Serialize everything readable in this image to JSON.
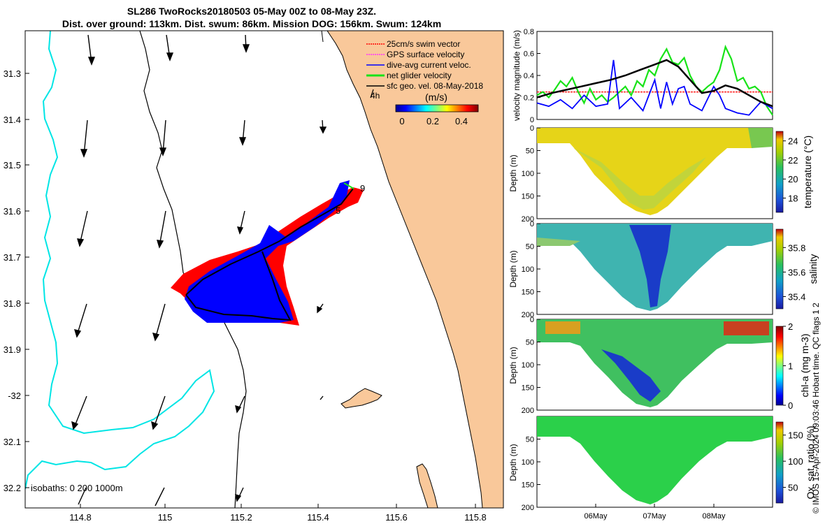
{
  "header": {
    "title_line1": "SL286 TwoRocks20180503 05-May 00Z to 08-May 23Z.",
    "title_line2": "Dist. over ground: 113km. Dist. swum: 86km. Mission DOG: 156km. Swum: 124km"
  },
  "colors": {
    "land": "#f9c89a",
    "isobath": "#00e5e5",
    "track_red": "#ff0000",
    "track_blue": "#0000ff",
    "green": "#18e318",
    "black": "#000000",
    "magenta": "#ff33ff"
  },
  "map": {
    "lon_ticks": [
      "114.8",
      "115",
      "115.2",
      "115.4",
      "115.6",
      "115.8"
    ],
    "lat_ticks": [
      "31.3",
      "31.4",
      "31.5",
      "31.6",
      "31.7",
      "31.8",
      "31.9",
      "-32",
      "32.1",
      "32.2"
    ],
    "isobath_label": "isobaths: 0   200  1000m",
    "legend": [
      {
        "label": "25cm/s swim vector",
        "color": "#ff0000"
      },
      {
        "label": "GPS surface velocity",
        "color": "#ff33ff"
      },
      {
        "label": "dive-avg current veloc.",
        "color": "#0000ff"
      },
      {
        "label": "net glider velocity",
        "color": "#18e318"
      },
      {
        "label": "sfc geo. vel. 08-May-2018",
        "color": "#000000"
      }
    ],
    "legend_time": "4h",
    "colorbar_title": "(m/s)",
    "colorbar_ticks": [
      "0",
      "0.2",
      "0.4"
    ],
    "track_labels": [
      "9",
      "5"
    ]
  },
  "chart_data": [
    {
      "type": "line",
      "title": "",
      "xlabel": "",
      "ylabel": "velocity magnitude (m/s)",
      "ylim": [
        0,
        0.8
      ],
      "yticks": [
        "0",
        "0.2",
        "0.4",
        "0.6",
        "0.8"
      ],
      "x_unit": "days since 05-May 00Z",
      "series": [
        {
          "name": "net glider velocity",
          "color": "#18e318",
          "x": [
            0,
            0.1,
            0.2,
            0.3,
            0.4,
            0.5,
            0.6,
            0.7,
            0.8,
            0.9,
            1.0,
            1.1,
            1.2,
            1.3,
            1.4,
            1.5,
            1.6,
            1.7,
            1.8,
            1.9,
            2.0,
            2.1,
            2.2,
            2.3,
            2.4,
            2.5,
            2.6,
            2.7,
            2.8,
            2.9,
            3.0,
            3.1,
            3.2,
            3.3,
            3.4,
            3.5,
            3.6,
            3.7,
            3.8,
            3.9,
            4.0
          ],
          "values": [
            0.22,
            0.25,
            0.2,
            0.27,
            0.35,
            0.3,
            0.38,
            0.25,
            0.15,
            0.28,
            0.18,
            0.22,
            0.16,
            0.2,
            0.25,
            0.3,
            0.22,
            0.35,
            0.3,
            0.45,
            0.4,
            0.55,
            0.64,
            0.52,
            0.5,
            0.56,
            0.4,
            0.3,
            0.25,
            0.3,
            0.34,
            0.45,
            0.66,
            0.55,
            0.35,
            0.38,
            0.28,
            0.3,
            0.25,
            0.12,
            0.04
          ]
        },
        {
          "name": "sfc geo. vel.",
          "color": "#000000",
          "x": [
            0,
            0.25,
            0.5,
            0.75,
            1.0,
            1.25,
            1.5,
            1.75,
            2.0,
            2.2,
            2.4,
            2.6,
            2.8,
            3.0,
            3.2,
            3.4,
            3.6,
            3.8,
            4.0
          ],
          "values": [
            0.2,
            0.24,
            0.27,
            0.3,
            0.33,
            0.36,
            0.4,
            0.45,
            0.5,
            0.54,
            0.48,
            0.36,
            0.24,
            0.26,
            0.31,
            0.28,
            0.22,
            0.16,
            0.12
          ]
        },
        {
          "name": "dive-avg current veloc.",
          "color": "#0000ff",
          "x": [
            0,
            0.2,
            0.4,
            0.6,
            0.8,
            1.0,
            1.2,
            1.3,
            1.4,
            1.6,
            1.8,
            2.0,
            2.1,
            2.2,
            2.3,
            2.4,
            2.5,
            2.6,
            2.8,
            3.0,
            3.1,
            3.2,
            3.4,
            3.6,
            3.8,
            4.0
          ],
          "values": [
            0.15,
            0.12,
            0.18,
            0.1,
            0.22,
            0.12,
            0.14,
            0.54,
            0.1,
            0.2,
            0.08,
            0.36,
            0.1,
            0.34,
            0.14,
            0.28,
            0.3,
            0.14,
            0.08,
            0.3,
            0.22,
            0.1,
            0.06,
            0.04,
            0.16,
            0.1
          ]
        },
        {
          "name": "25cm/s swim vector",
          "color": "#ff0000",
          "x": [
            0,
            4.0
          ],
          "values": [
            0.25,
            0.25
          ]
        }
      ]
    },
    {
      "type": "heatmap",
      "xlabel": "",
      "ylabel": "Depth (m)",
      "ylim": [
        200,
        0
      ],
      "yticks": [
        "0",
        "50",
        "100",
        "150",
        "200"
      ],
      "colorbar_label": "temperature (°C)",
      "colorbar_ticks": [
        "18",
        "20",
        "22",
        "24"
      ],
      "cmin": 16.5,
      "cmax": 25
    },
    {
      "type": "heatmap",
      "xlabel": "",
      "ylabel": "Depth (m)",
      "ylim": [
        200,
        0
      ],
      "yticks": [
        "0",
        "50",
        "100",
        "150",
        "200"
      ],
      "colorbar_label": "salinity",
      "colorbar_ticks": [
        "35.4",
        "35.6",
        "35.8"
      ],
      "cmin": 35.3,
      "cmax": 35.95
    },
    {
      "type": "heatmap",
      "xlabel": "",
      "ylabel": "Depth (m)",
      "ylim": [
        200,
        0
      ],
      "yticks": [
        "0",
        "50",
        "100",
        "150",
        "200"
      ],
      "colorbar_label": "chl-a (mg m-3)",
      "colorbar_ticks": [
        "0",
        "1",
        "2"
      ],
      "cmin": 0,
      "cmax": 2
    },
    {
      "type": "heatmap",
      "xlabel": "",
      "ylabel": "Depth (m)",
      "ylim": [
        200,
        0
      ],
      "yticks": [
        "50",
        "100",
        "150",
        "200"
      ],
      "x_ticks": [
        "06May",
        "07May",
        "08May"
      ],
      "colorbar_label": "Ox. sat. ratio (%)",
      "colorbar_ticks": [
        "50",
        "100",
        "150"
      ],
      "cmin": 20,
      "cmax": 175
    }
  ],
  "footer": {
    "copyright": "© IMOS 15-Apr-2024 09:03:46 Hobart time. QC flags 1  2"
  }
}
